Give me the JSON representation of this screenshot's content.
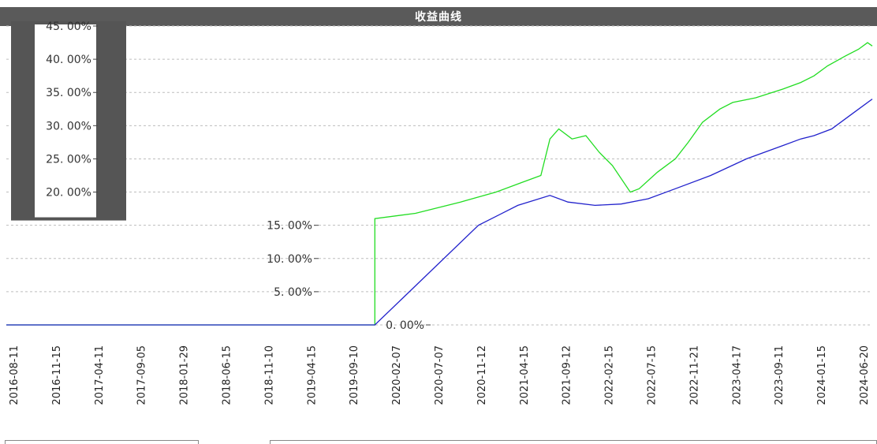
{
  "chart_data": {
    "type": "line",
    "title": "收益曲线",
    "ylim": [
      0,
      45
    ],
    "y_tick_labels": [
      "0. 00%",
      "5. 00%",
      "10. 00%",
      "15. 00%",
      "20. 00%",
      "25. 00%",
      "30. 00%",
      "35. 00%",
      "40. 00%",
      "45. 00%"
    ],
    "y_tick_values": [
      0,
      5,
      10,
      15,
      20,
      25,
      30,
      35,
      40,
      45
    ],
    "x_tick_labels": [
      "2016-08-11",
      "2016-11-15",
      "2017-04-11",
      "2017-09-05",
      "2018-01-29",
      "2018-06-15",
      "2018-11-10",
      "2019-04-15",
      "2019-09-10",
      "2020-02-07",
      "2020-07-07",
      "2020-11-12",
      "2021-04-15",
      "2021-09-12",
      "2022-02-15",
      "2022-07-15",
      "2022-11-21",
      "2023-04-17",
      "2023-09-11",
      "2024-01-15",
      "2024-06-20"
    ],
    "x_range": [
      "2016-08-11",
      "2024-08-31"
    ],
    "grid": true,
    "series": [
      {
        "color": "#22dd22",
        "points": [
          [
            "2016-08-11",
            0.0
          ],
          [
            "2020-01-15",
            0.0
          ],
          [
            "2020-01-15",
            16.0
          ],
          [
            "2020-06-01",
            16.8
          ],
          [
            "2020-11-01",
            18.5
          ],
          [
            "2021-03-01",
            20.0
          ],
          [
            "2021-06-01",
            21.5
          ],
          [
            "2021-08-01",
            22.5
          ],
          [
            "2021-09-01",
            28.0
          ],
          [
            "2021-10-01",
            29.5
          ],
          [
            "2021-11-15",
            28.0
          ],
          [
            "2022-01-01",
            28.5
          ],
          [
            "2022-02-15",
            26.0
          ],
          [
            "2022-04-01",
            24.0
          ],
          [
            "2022-06-01",
            20.0
          ],
          [
            "2022-07-01",
            20.5
          ],
          [
            "2022-09-01",
            23.0
          ],
          [
            "2022-11-01",
            25.0
          ],
          [
            "2022-12-15",
            27.5
          ],
          [
            "2023-02-01",
            30.5
          ],
          [
            "2023-04-01",
            32.5
          ],
          [
            "2023-05-15",
            33.5
          ],
          [
            "2023-08-01",
            34.2
          ],
          [
            "2023-11-01",
            35.5
          ],
          [
            "2024-01-01",
            36.5
          ],
          [
            "2024-02-15",
            37.5
          ],
          [
            "2024-04-01",
            39.0
          ],
          [
            "2024-06-01",
            40.5
          ],
          [
            "2024-07-15",
            41.5
          ],
          [
            "2024-08-15",
            42.5
          ],
          [
            "2024-08-31",
            42.0
          ]
        ]
      },
      {
        "color": "#2222cc",
        "points": [
          [
            "2016-08-11",
            0.0
          ],
          [
            "2018-06-15",
            0.0
          ],
          [
            "2020-01-15",
            0.0
          ],
          [
            "2021-01-01",
            15.0
          ],
          [
            "2021-05-15",
            18.0
          ],
          [
            "2021-09-01",
            19.5
          ],
          [
            "2021-11-01",
            18.5
          ],
          [
            "2022-02-01",
            18.0
          ],
          [
            "2022-05-01",
            18.2
          ],
          [
            "2022-08-01",
            19.0
          ],
          [
            "2022-11-01",
            20.5
          ],
          [
            "2023-03-01",
            22.5
          ],
          [
            "2023-07-01",
            25.0
          ],
          [
            "2023-11-01",
            27.0
          ],
          [
            "2024-01-01",
            28.0
          ],
          [
            "2024-02-15",
            28.5
          ],
          [
            "2024-04-15",
            29.5
          ],
          [
            "2024-06-15",
            31.5
          ],
          [
            "2024-08-31",
            34.0
          ]
        ]
      }
    ]
  }
}
